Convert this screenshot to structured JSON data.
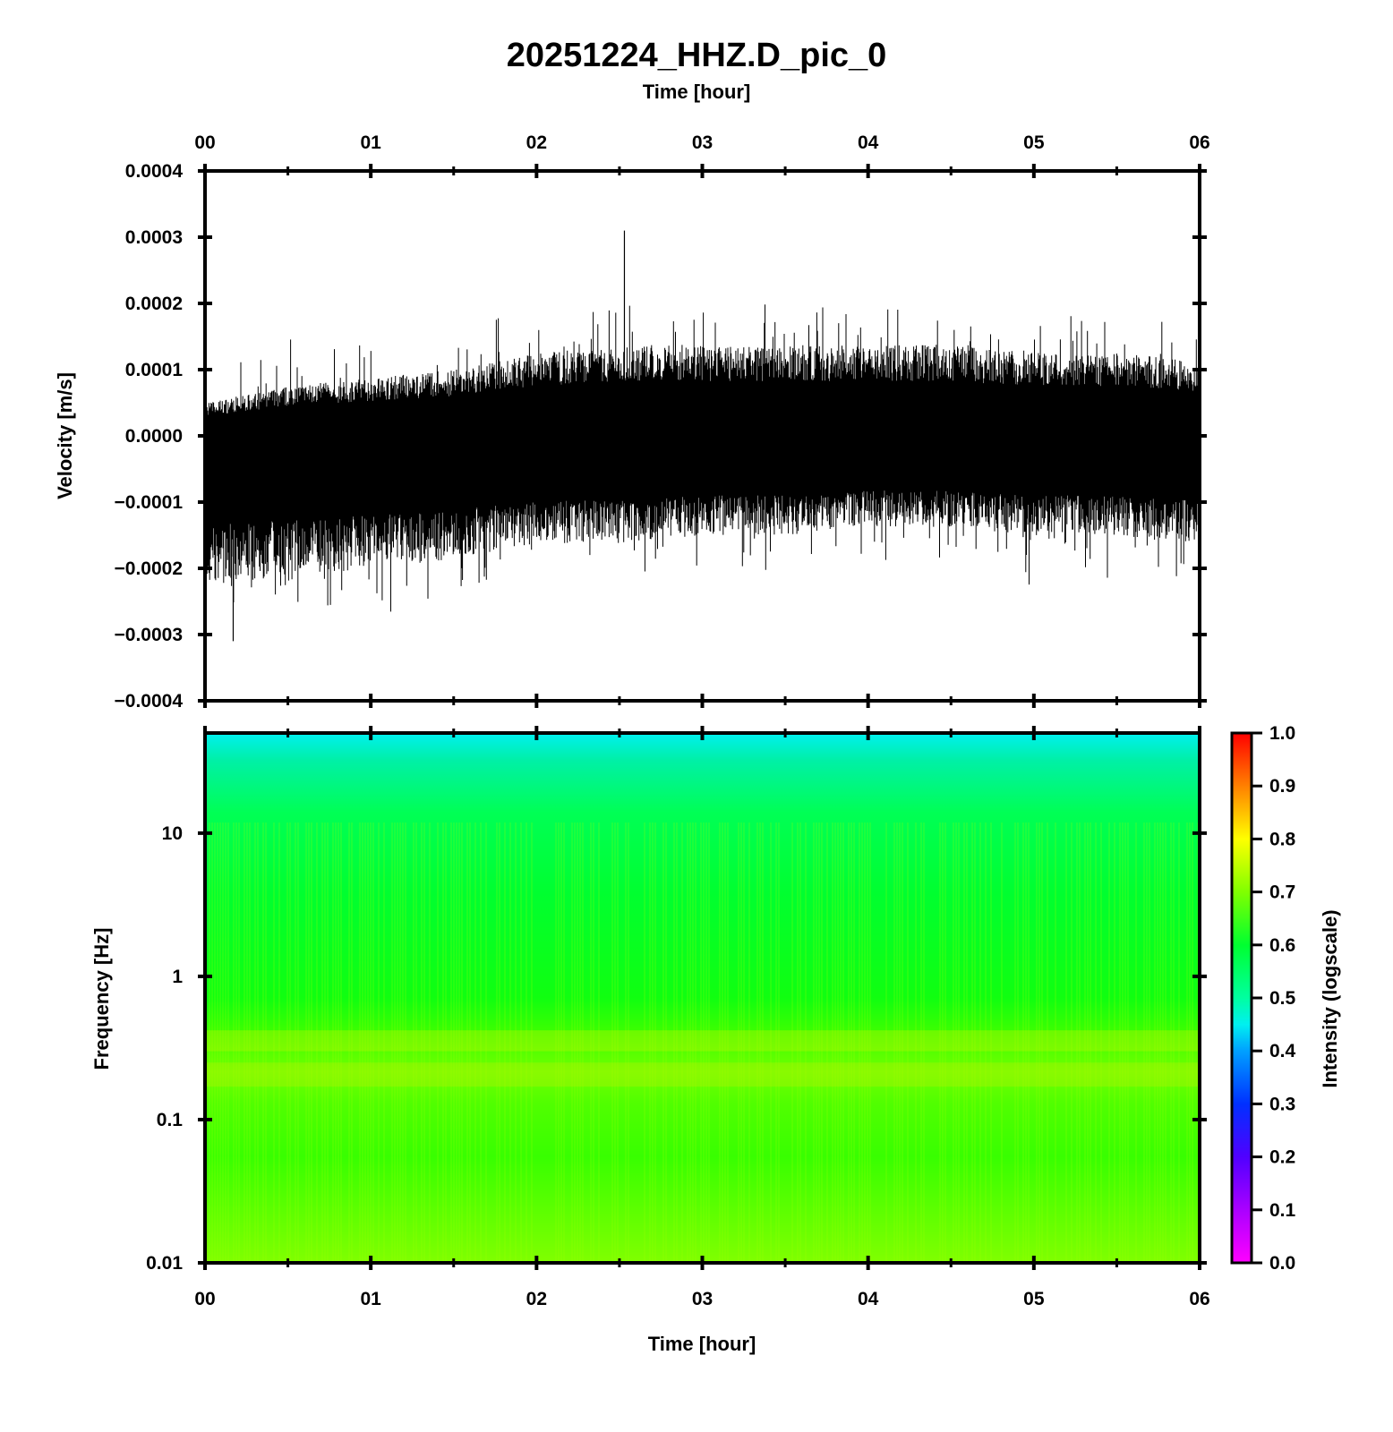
{
  "title": "20251224_HHZ.D_pic_0",
  "chart_data": [
    {
      "type": "line",
      "panel": "waveform",
      "xlabel_top": "Time [hour]",
      "ylabel": "Velocity [m/s]",
      "xlim": [
        0,
        6
      ],
      "ylim": [
        -0.0004,
        0.0004
      ],
      "x_tick_labels": [
        "00",
        "01",
        "02",
        "03",
        "04",
        "05",
        "06"
      ],
      "y_tick_labels": [
        "0.0004",
        "0.0003",
        "0.0002",
        "0.0001",
        "0.0000",
        "−0.0001",
        "−0.0002",
        "−0.0003",
        "−0.0004"
      ],
      "series": [
        {
          "x": [
            0,
            0.5,
            1,
            1.5,
            2,
            2.5,
            3,
            3.5,
            4,
            4.5,
            5,
            5.5,
            6
          ],
          "upper": [
            4e-05,
            6e-05,
            7e-05,
            8e-05,
            0.0001,
            0.00011,
            0.00011,
            0.00011,
            0.00011,
            0.00011,
            0.0001,
            0.0001,
            9e-05
          ],
          "lower": [
            -0.00018,
            -0.00017,
            -0.00016,
            -0.00015,
            -0.00013,
            -0.00013,
            -0.00012,
            -0.00012,
            -0.00011,
            -0.00011,
            -0.00012,
            -0.00012,
            -0.00013
          ],
          "peak_max": 0.00031,
          "peak_min": -0.00031
        }
      ]
    },
    {
      "type": "heatmap",
      "panel": "spectrogram",
      "xlabel": "Time [hour]",
      "ylabel": "Frequency [Hz]",
      "xlim": [
        0,
        6
      ],
      "ylim": [
        0.01,
        50
      ],
      "yscale": "log",
      "x_tick_labels": [
        "00",
        "01",
        "02",
        "03",
        "04",
        "05",
        "06"
      ],
      "y_tick_labels": [
        "10",
        "1",
        "0.1",
        "0.01"
      ],
      "colorbar_label": "Intensity (logscale)",
      "colorbar_ticks": [
        "1.0",
        "0.9",
        "0.8",
        "0.7",
        "0.6",
        "0.5",
        "0.4",
        "0.3",
        "0.2",
        "0.1",
        "0.0"
      ],
      "colorbar_range": [
        0,
        1
      ],
      "intensity_profile": {
        "frequency": [
          50,
          30,
          10,
          3,
          1,
          0.5,
          0.3,
          0.2,
          0.1,
          0.01
        ],
        "intensity": [
          0.45,
          0.52,
          0.58,
          0.59,
          0.6,
          0.64,
          0.66,
          0.65,
          0.63,
          0.68
        ]
      }
    }
  ]
}
